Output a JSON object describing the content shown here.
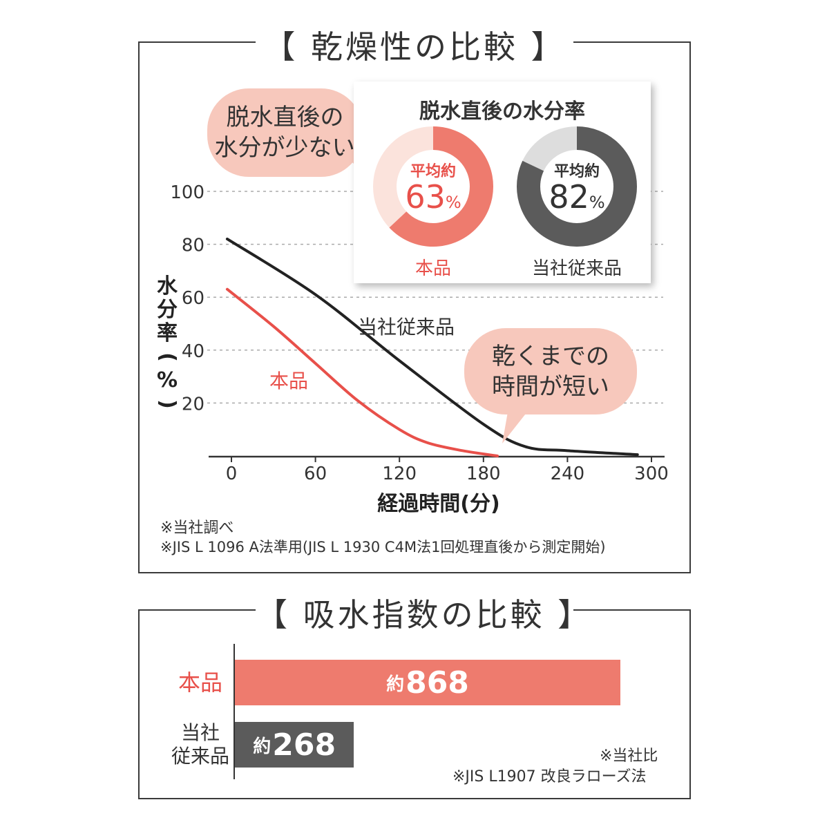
{
  "chart1": {
    "title": "【 乾燥性の比較 】",
    "bubble_left": [
      "脱水直後の",
      "水分が少ない"
    ],
    "bubble_right": [
      "乾くまでの",
      "時間が短い"
    ],
    "inset": {
      "title": "脱水直後の水分率",
      "donut_prefix": "平均約",
      "pct_sign": "%",
      "items": [
        {
          "label": "本品",
          "value": 63,
          "color": "#ee7b6e",
          "track": "#fbe3dc",
          "text_color": "#e8504a"
        },
        {
          "label": "当社従来品",
          "value": 82,
          "color": "#5b5b5b",
          "track": "#dddddd",
          "text_color": "#333333"
        }
      ]
    },
    "ylabel": "水分率(%)",
    "xlabel": "経過時間(分)",
    "series_labels": {
      "conventional": "当社従来品",
      "product": "本品"
    },
    "notes": [
      "※当社調べ",
      "※JIS L 1096 A法準用(JIS L 1930 C4M法1回処理直後から測定開始)"
    ]
  },
  "chart_data": [
    {
      "type": "line",
      "title": "乾燥性の比較",
      "xlabel": "経過時間(分)",
      "ylabel": "水分率(%)",
      "xlim": [
        -15,
        310
      ],
      "ylim": [
        0,
        105
      ],
      "x_ticks": [
        0,
        60,
        120,
        180,
        240,
        300
      ],
      "y_ticks": [
        20,
        40,
        60,
        80,
        100
      ],
      "grid": true,
      "series": [
        {
          "name": "当社従来品",
          "color": "#222222",
          "x": [
            -3,
            60,
            120,
            180,
            210,
            240,
            290
          ],
          "y": [
            82,
            61,
            36,
            12,
            3.5,
            2,
            0.5
          ]
        },
        {
          "name": "本品",
          "color": "#e8504a",
          "x": [
            -3,
            30,
            60,
            90,
            120,
            140,
            165,
            190
          ],
          "y": [
            63,
            49,
            35,
            21,
            10,
            5,
            2,
            0
          ]
        }
      ]
    },
    {
      "type": "bar",
      "title": "吸水指数の比較",
      "orientation": "horizontal",
      "categories": [
        "本品",
        "当社従来品"
      ],
      "values": [
        868,
        268
      ],
      "xlim": [
        0,
        1000
      ]
    }
  ],
  "chart2": {
    "title": "【 吸水指数の比較 】",
    "bars": [
      {
        "label_lines": [
          "本品"
        ],
        "prefix": "約",
        "value_text": "868",
        "value": 868,
        "color": "#ee7b6e",
        "label_color": "#e8504a"
      },
      {
        "label_lines": [
          "当社",
          "従来品"
        ],
        "prefix": "約",
        "value_text": "268",
        "value": 268,
        "color": "#5b5b5b",
        "label_color": "#333333"
      }
    ],
    "notes": [
      "※当社比",
      "※JIS L1907 改良ラローズ法"
    ]
  }
}
